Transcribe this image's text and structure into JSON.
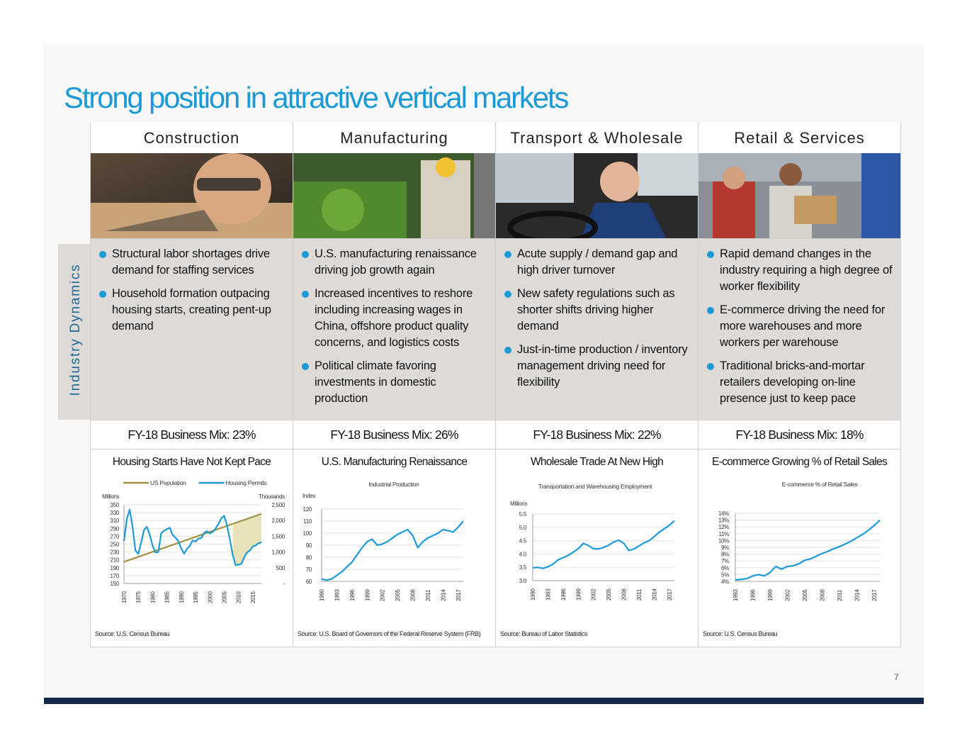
{
  "title": "Strong position in attractive vertical markets",
  "side_label": "Industry Dynamics",
  "page_number": "7",
  "colors": {
    "accent": "#1b9ad6",
    "olive": "#a09142",
    "navy": "#13294b"
  },
  "columns": [
    {
      "heading": "Construction",
      "photo": "construction-worker-photo",
      "bullets": [
        "Structural labor shortages drive demand for staffing services",
        "Household formation outpacing housing starts, creating pent-up demand"
      ],
      "business_mix": "FY-18 Business Mix: 23%"
    },
    {
      "heading": "Manufacturing",
      "photo": "manufacturing-worker-photo",
      "bullets": [
        "U.S. manufacturing renaissance driving job growth again",
        "Increased incentives to reshore including increasing wages in China, offshore product quality concerns, and logistics costs",
        "Political climate favoring investments in domestic production"
      ],
      "business_mix": "FY-18 Business Mix: 26%"
    },
    {
      "heading": "Transport & Wholesale",
      "photo": "truck-driver-photo",
      "bullets": [
        "Acute supply / demand gap and high driver turnover",
        "New safety regulations such as shorter shifts driving higher demand",
        "Just-in-time production / inventory management driving need for flexibility"
      ],
      "business_mix": "FY-18 Business Mix: 22%"
    },
    {
      "heading": "Retail & Services",
      "photo": "warehouse-workers-photo",
      "bullets": [
        "Rapid demand changes in the industry requiring a high degree of worker flexibility",
        "E-commerce driving the need for more warehouses and more workers per warehouse",
        "Traditional bricks-and-mortar retailers developing on-line presence just to keep pace"
      ],
      "business_mix": "FY-18 Business Mix: 18%"
    }
  ],
  "chart_data": [
    {
      "type": "line",
      "title": "Housing Starts Have Not Kept Pace",
      "source": "Source: U.S. Census Bureau",
      "left_axis_label": "Millions",
      "right_axis_label": "Thousands",
      "left_ticks": [
        "350",
        "330",
        "310",
        "290",
        "270",
        "250",
        "230",
        "210",
        "190",
        "170",
        "150"
      ],
      "right_ticks": [
        "2,500",
        "2,000",
        "1,500",
        "1,000",
        "500",
        "-"
      ],
      "x_ticks": [
        "1970",
        "1975",
        "1980",
        "1985",
        "1990",
        "1995",
        "2000",
        "2005",
        "2010",
        "2015"
      ],
      "left_range": [
        150,
        350
      ],
      "right_range": [
        0,
        2500
      ],
      "x_range": [
        1970,
        2018
      ],
      "series": [
        {
          "name": "US Population",
          "axis": "left",
          "color": "#a09142",
          "x": [
            1970,
            2018
          ],
          "y": [
            205,
            327
          ]
        },
        {
          "name": "Housing Permits",
          "axis": "right",
          "color": "#1b9ad6",
          "x": [
            1970,
            1971,
            1972,
            1973,
            1974,
            1975,
            1976,
            1977,
            1978,
            1979,
            1980,
            1981,
            1982,
            1983,
            1984,
            1985,
            1986,
            1987,
            1988,
            1989,
            1990,
            1991,
            1992,
            1993,
            1994,
            1995,
            1996,
            1997,
            1998,
            1999,
            2000,
            2001,
            2002,
            2003,
            2004,
            2005,
            2006,
            2007,
            2008,
            2009,
            2010,
            2011,
            2012,
            2013,
            2014,
            2015,
            2016,
            2017,
            2018
          ],
          "y": [
            1350,
            2050,
            2350,
            1800,
            1050,
            940,
            1300,
            1700,
            1800,
            1550,
            1200,
            980,
            1000,
            1600,
            1680,
            1730,
            1770,
            1540,
            1460,
            1340,
            1110,
            950,
            1100,
            1200,
            1370,
            1330,
            1430,
            1440,
            1610,
            1660,
            1590,
            1640,
            1750,
            1890,
            2070,
            2150,
            1840,
            1390,
            900,
            580,
            600,
            620,
            830,
            990,
            1050,
            1180,
            1210,
            1280,
            1310
          ]
        }
      ]
    },
    {
      "type": "line",
      "title": "U.S. Manufacturing Renaissance",
      "legend": "Industrial Production",
      "source": "Source: U.S. Board of Governors of the Federal Reserve System (FRB)",
      "y_axis_label": "Index",
      "y_ticks": [
        "120",
        "110",
        "100",
        "90",
        "80",
        "70",
        "60"
      ],
      "x_ticks": [
        "1990",
        "1993",
        "1996",
        "1999",
        "2002",
        "2005",
        "2008",
        "2011",
        "2014",
        "2017"
      ],
      "y_range": [
        60,
        120
      ],
      "x_range": [
        1990,
        2018
      ],
      "series": [
        {
          "name": "Industrial Production",
          "color": "#1b9ad6",
          "x": [
            1990,
            1991,
            1992,
            1993,
            1994,
            1995,
            1996,
            1997,
            1998,
            1999,
            2000,
            2001,
            2002,
            2003,
            2004,
            2005,
            2006,
            2007,
            2008,
            2009,
            2010,
            2011,
            2012,
            2013,
            2014,
            2015,
            2016,
            2017,
            2018
          ],
          "y": [
            62,
            61,
            62,
            65,
            68,
            72,
            76,
            82,
            88,
            93,
            95,
            90,
            91,
            93,
            96,
            99,
            101,
            103,
            98,
            88,
            93,
            96,
            98,
            100,
            103,
            102,
            101,
            105,
            110
          ]
        }
      ]
    },
    {
      "type": "line",
      "title": "Wholesale Trade At New High",
      "legend": "Transportation and Warehousing Employment",
      "source": "Source: Bureau of Labor Statistics",
      "y_axis_label": "Millions",
      "y_ticks": [
        "5.5",
        "5.0",
        "4.5",
        "4.0",
        "3.5",
        "3.0"
      ],
      "x_ticks": [
        "1990",
        "1993",
        "1996",
        "1999",
        "2002",
        "2005",
        "2008",
        "2011",
        "2014",
        "2017"
      ],
      "y_range": [
        3.0,
        5.5
      ],
      "x_range": [
        1990,
        2018
      ],
      "series": [
        {
          "name": "Transportation and Warehousing Employment",
          "color": "#1b9ad6",
          "x": [
            1990,
            1991,
            1992,
            1993,
            1994,
            1995,
            1996,
            1997,
            1998,
            1999,
            2000,
            2001,
            2002,
            2003,
            2004,
            2005,
            2006,
            2007,
            2008,
            2009,
            2010,
            2011,
            2012,
            2013,
            2014,
            2015,
            2016,
            2017,
            2018
          ],
          "y": [
            3.48,
            3.5,
            3.46,
            3.52,
            3.62,
            3.78,
            3.86,
            3.95,
            4.07,
            4.2,
            4.4,
            4.32,
            4.2,
            4.19,
            4.25,
            4.33,
            4.45,
            4.52,
            4.4,
            4.13,
            4.19,
            4.3,
            4.42,
            4.5,
            4.65,
            4.82,
            4.95,
            5.08,
            5.25
          ]
        }
      ]
    },
    {
      "type": "line",
      "title": "E-commerce Growing % of Retail Sales",
      "legend": "E-commerce % of Retail Sales",
      "source": "Source: U.S. Census Bureau",
      "y_ticks": [
        "14%",
        "13%",
        "12%",
        "11%",
        "10%",
        "9%",
        "8%",
        "7%",
        "6%",
        "5%",
        "4%"
      ],
      "x_ticks": [
        "1993",
        "1996",
        "1999",
        "2002",
        "2005",
        "2008",
        "2011",
        "2014",
        "2017"
      ],
      "y_range": [
        4,
        14
      ],
      "x_range": [
        1993,
        2018
      ],
      "series": [
        {
          "name": "E-commerce % of Retail Sales",
          "color": "#1b9ad6",
          "x": [
            1993,
            1994,
            1995,
            1996,
            1997,
            1998,
            1999,
            2000,
            2001,
            2002,
            2003,
            2004,
            2005,
            2006,
            2007,
            2008,
            2009,
            2010,
            2011,
            2012,
            2013,
            2014,
            2015,
            2016,
            2017,
            2018
          ],
          "y": [
            4.2,
            4.3,
            4.4,
            4.8,
            5.0,
            4.8,
            5.3,
            6.2,
            5.8,
            6.2,
            6.3,
            6.6,
            7.1,
            7.3,
            7.7,
            8.1,
            8.4,
            8.8,
            9.1,
            9.5,
            9.9,
            10.4,
            10.9,
            11.5,
            12.2,
            13.0
          ]
        }
      ]
    }
  ]
}
